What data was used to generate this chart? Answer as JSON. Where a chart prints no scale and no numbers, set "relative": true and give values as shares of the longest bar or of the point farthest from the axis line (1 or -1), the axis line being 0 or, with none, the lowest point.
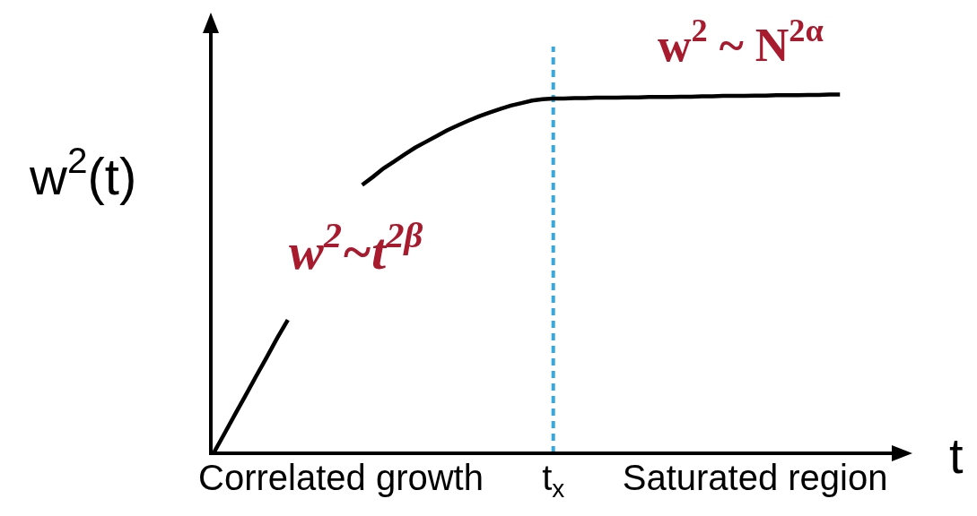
{
  "chart_data": {
    "type": "line",
    "relative": true,
    "xlabel": "t",
    "ylabel": "w$^{2}$(t)",
    "tick_labels": "x",
    "line_style": "solid",
    "categories": [
      null,
      null,
      null,
      null,
      null,
      null,
      null,
      null,
      null,
      null,
      null,
      null,
      "Correlated growth",
      null,
      null,
      null,
      null,
      null,
      null,
      null,
      null,
      null,
      null,
      null,
      null,
      null,
      null,
      null,
      null,
      null,
      null,
      null,
      "t$_{x}$",
      null,
      null,
      null,
      null,
      null,
      null,
      null,
      null,
      null,
      null,
      null,
      null,
      null,
      null,
      null,
      null,
      null,
      null,
      "Saturated region",
      null,
      null,
      null,
      null,
      null,
      null,
      null,
      null
    ],
    "series": [
      {
        "color": "#000000",
        "values": [
          0,
          0.053,
          0.107,
          0.16,
          0.214,
          0.267,
          0.321,
          0.372,
          null,
          null,
          null,
          null,
          null,
          null,
          0.748,
          0.77,
          0.794,
          0.813,
          0.833,
          0.852,
          0.868,
          0.884,
          0.9,
          0.914,
          0.927,
          0.939,
          0.95,
          0.96,
          0.969,
          0.976,
          0.983,
          0.987,
          0.989,
          0.989,
          0.99,
          0.99,
          0.991,
          0.991,
          0.991,
          0.992,
          0.992,
          0.993,
          0.993,
          0.993,
          0.994,
          0.994,
          0.995,
          0.995,
          0.996,
          0.996,
          0.996,
          0.997,
          0.997,
          0.998,
          0.998,
          0.998,
          0.999,
          0.999,
          1.0,
          1.0
        ]
      }
    ],
    "ref_lines": [
      {
        "axis": "x",
        "value": "t$_{x}$",
        "color": "#35a8df",
        "line_style": "dashed"
      }
    ],
    "annotations": [
      "w$^{2}$ ~ N$^{2α}$",
      "w$^{2}$~t$^{2β}$"
    ]
  }
}
